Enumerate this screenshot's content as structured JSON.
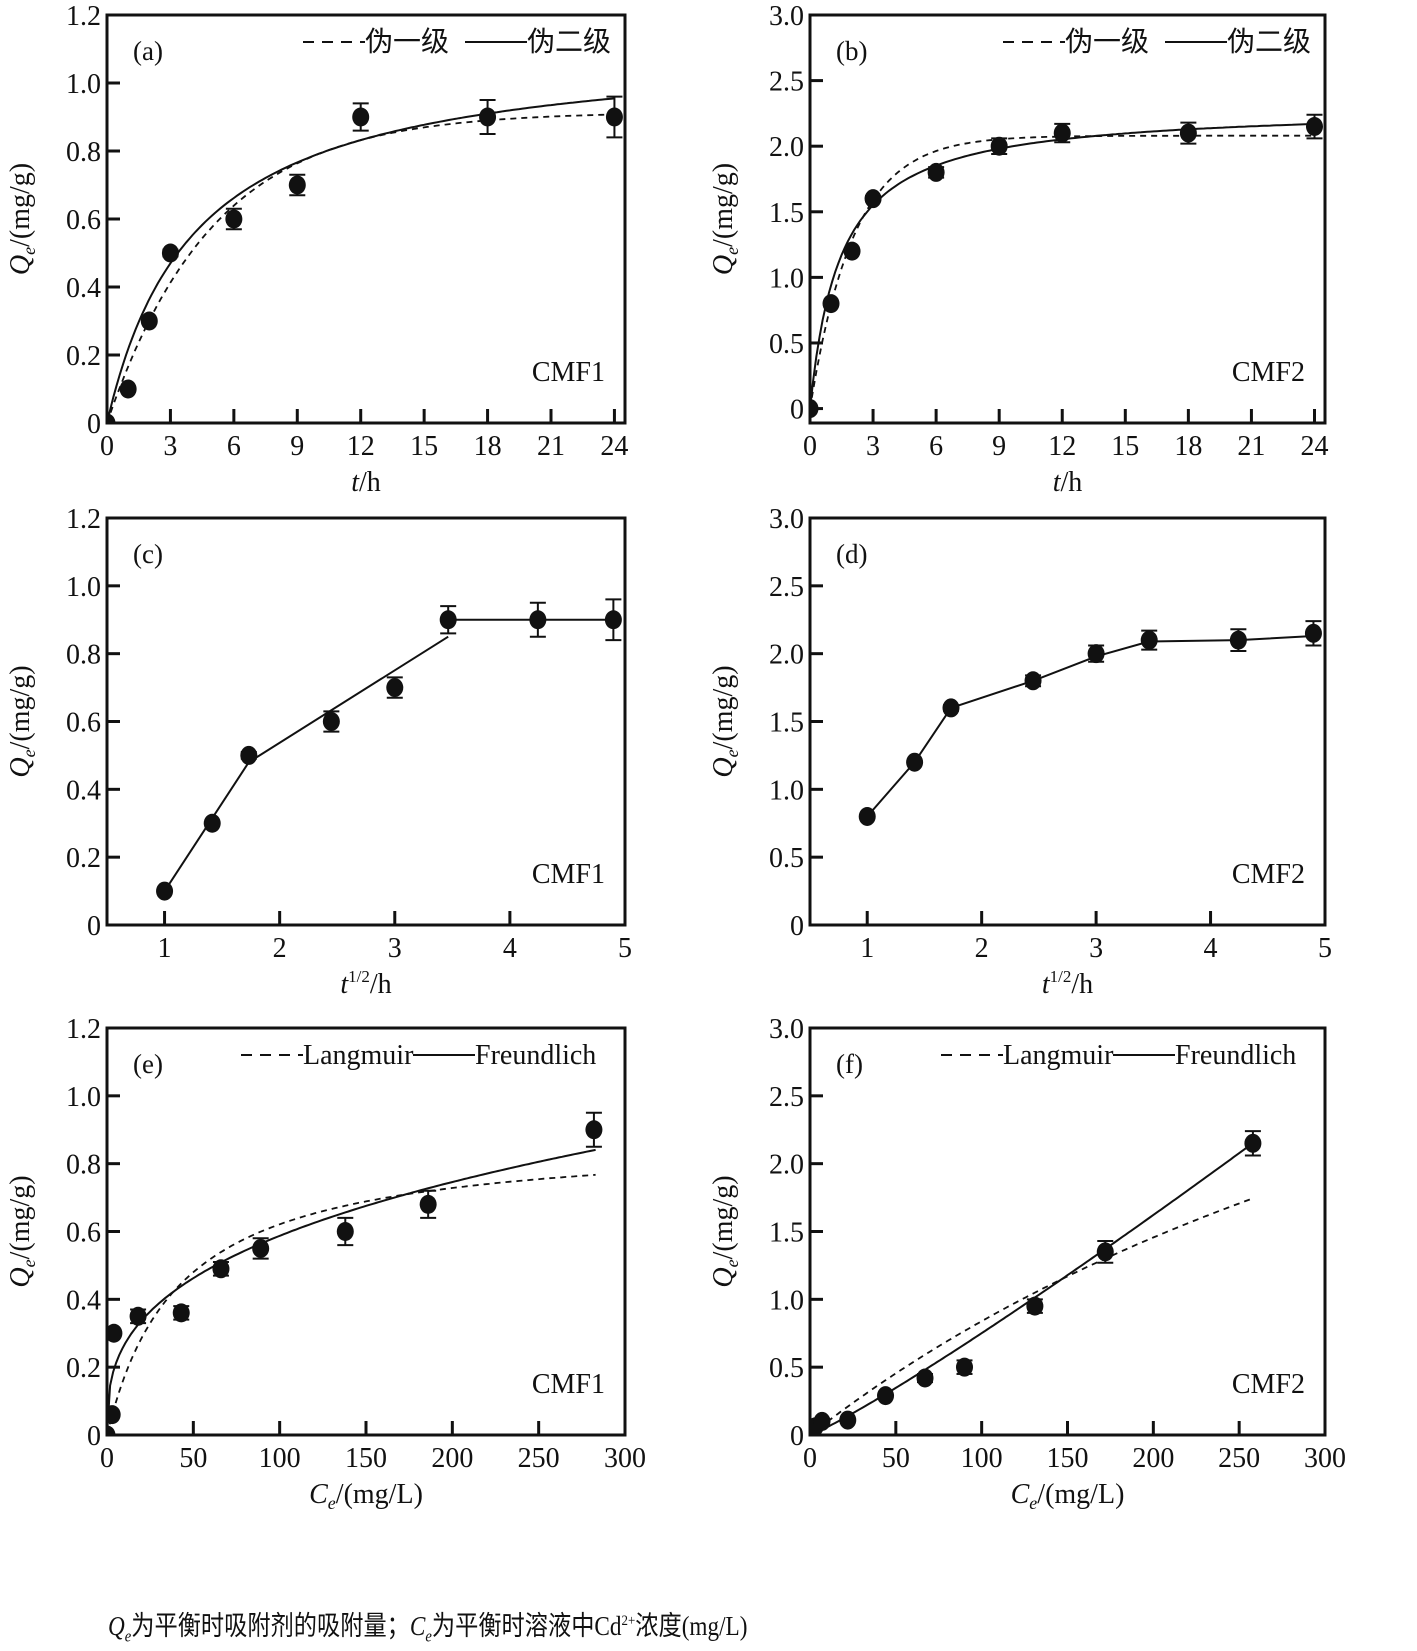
{
  "caption": {
    "q_symbol": "Q",
    "q_sub": "e",
    "part1": "为平衡时吸附剂的吸附量；",
    "c_symbol": "C",
    "c_sub": "e",
    "part2": "为平衡时溶液中Cd",
    "superscript": "2+",
    "part3": "浓度(mg/L)"
  },
  "chart_data": [
    {
      "id": "a",
      "type": "scatter",
      "panel_label": "(a)",
      "sample_label": "CMF1",
      "xlabel_italic": "t",
      "xlabel_rest": "/h",
      "ylabel_italic": "Q",
      "ylabel_sub": "e",
      "ylabel_rest": "/(mg/g)",
      "xlim": [
        0,
        24.5
      ],
      "ylim": [
        0,
        1.2
      ],
      "xticks": [
        0,
        3,
        6,
        9,
        12,
        15,
        18,
        21,
        24
      ],
      "xtick_labels": [
        "0",
        "3",
        "6",
        "9",
        "12",
        "15",
        "18",
        "21",
        "24"
      ],
      "yticks": [
        0,
        0.2,
        0.4,
        0.6,
        0.8,
        1.0,
        1.2
      ],
      "ytick_labels": [
        "0",
        "0.2",
        "0.4",
        "0.6",
        "0.8",
        "1.0",
        "1.2"
      ],
      "legend": [
        {
          "label": "伪一级",
          "style": "dashed"
        },
        {
          "label": "伪二级",
          "style": "solid"
        }
      ],
      "legend_position": "top-right",
      "points": {
        "x": [
          0,
          1,
          2,
          3,
          6,
          9,
          12,
          18,
          24
        ],
        "y": [
          0,
          0.1,
          0.3,
          0.5,
          0.6,
          0.7,
          0.9,
          0.9,
          0.9
        ],
        "err": [
          0,
          0,
          0,
          0.01,
          0.03,
          0.03,
          0.04,
          0.05,
          0.06
        ]
      },
      "series": [
        {
          "name": "伪一级",
          "style": "dashed",
          "model": "pfo",
          "qe": 0.915,
          "k": 0.2
        },
        {
          "name": "伪二级",
          "style": "solid",
          "model": "pso",
          "qe": 1.12,
          "k": 0.215
        }
      ]
    },
    {
      "id": "b",
      "type": "scatter",
      "panel_label": "(b)",
      "sample_label": "CMF2",
      "xlabel_italic": "t",
      "xlabel_rest": "/h",
      "ylabel_italic": "Q",
      "ylabel_sub": "e",
      "ylabel_rest": "/(mg/g)",
      "xlim": [
        0,
        24.5
      ],
      "ylim": [
        -0.11,
        3.0
      ],
      "xticks": [
        0,
        3,
        6,
        9,
        12,
        15,
        18,
        21,
        24
      ],
      "xtick_labels": [
        "0",
        "3",
        "6",
        "9",
        "12",
        "15",
        "18",
        "21",
        "24"
      ],
      "yticks": [
        0,
        0.5,
        1.0,
        1.5,
        2.0,
        2.5,
        3.0
      ],
      "ytick_labels": [
        "0",
        "0.5",
        "1.0",
        "1.5",
        "2.0",
        "2.5",
        "3.0"
      ],
      "legend": [
        {
          "label": "伪一级",
          "style": "dashed"
        },
        {
          "label": "伪二级",
          "style": "solid"
        }
      ],
      "legend_position": "top-right",
      "points": {
        "x": [
          0,
          1,
          2,
          3,
          6,
          9,
          12,
          18,
          24
        ],
        "y": [
          0,
          0.8,
          1.2,
          1.6,
          1.8,
          2.0,
          2.1,
          2.1,
          2.15
        ],
        "err": [
          0,
          0,
          0,
          0.02,
          0.04,
          0.06,
          0.07,
          0.08,
          0.09
        ]
      },
      "series": [
        {
          "name": "伪一级",
          "style": "dashed",
          "model": "pfo",
          "qe": 2.08,
          "k": 0.48
        },
        {
          "name": "伪二级",
          "style": "solid",
          "model": "pso",
          "qe": 2.3,
          "k": 0.3
        }
      ]
    },
    {
      "id": "c",
      "type": "line",
      "panel_label": "(c)",
      "sample_label": "CMF1",
      "xlabel_italic": "t",
      "xlabel_sup": "1/2",
      "xlabel_rest": "/h",
      "ylabel_italic": "Q",
      "ylabel_sub": "e",
      "ylabel_rest": "/(mg/g)",
      "xlim": [
        0.5,
        5
      ],
      "ylim": [
        0,
        1.2
      ],
      "xticks": [
        1,
        2,
        3,
        4,
        5
      ],
      "xtick_labels": [
        "1",
        "2",
        "3",
        "4",
        "5"
      ],
      "yticks": [
        0,
        0.2,
        0.4,
        0.6,
        0.8,
        1.0,
        1.2
      ],
      "ytick_labels": [
        "0",
        "0.2",
        "0.4",
        "0.6",
        "0.8",
        "1.0",
        "1.2"
      ],
      "points": {
        "x": [
          1.0,
          1.414,
          1.732,
          2.449,
          3.0,
          3.464,
          4.243,
          4.899
        ],
        "y": [
          0.1,
          0.3,
          0.5,
          0.6,
          0.7,
          0.9,
          0.9,
          0.9
        ],
        "err": [
          0,
          0,
          0.01,
          0.03,
          0.03,
          0.04,
          0.05,
          0.06
        ]
      },
      "series": [
        {
          "name": "stage1",
          "style": "solid",
          "x": [
            1.0,
            1.732
          ],
          "y": [
            0.1,
            0.48
          ]
        },
        {
          "name": "stage2",
          "style": "solid",
          "x": [
            1.732,
            3.464
          ],
          "y": [
            0.48,
            0.85
          ]
        },
        {
          "name": "stage3",
          "style": "solid",
          "x": [
            3.464,
            4.899
          ],
          "y": [
            0.9,
            0.9
          ]
        }
      ]
    },
    {
      "id": "d",
      "type": "line",
      "panel_label": "(d)",
      "sample_label": "CMF2",
      "xlabel_italic": "t",
      "xlabel_sup": "1/2",
      "xlabel_rest": "/h",
      "ylabel_italic": "Q",
      "ylabel_sub": "e",
      "ylabel_rest": "/(mg/g)",
      "xlim": [
        0.5,
        5
      ],
      "ylim": [
        0,
        3.0
      ],
      "xticks": [
        1,
        2,
        3,
        4,
        5
      ],
      "xtick_labels": [
        "1",
        "2",
        "3",
        "4",
        "5"
      ],
      "yticks": [
        0,
        0.5,
        1.0,
        1.5,
        2.0,
        2.5,
        3.0
      ],
      "ytick_labels": [
        "0",
        "0.5",
        "1.0",
        "1.5",
        "2.0",
        "2.5",
        "3.0"
      ],
      "points": {
        "x": [
          1.0,
          1.414,
          1.732,
          2.449,
          3.0,
          3.464,
          4.243,
          4.899
        ],
        "y": [
          0.8,
          1.2,
          1.6,
          1.8,
          2.0,
          2.1,
          2.1,
          2.15
        ],
        "err": [
          0,
          0,
          0.02,
          0.04,
          0.06,
          0.07,
          0.08,
          0.09
        ]
      },
      "series": [
        {
          "name": "stage1",
          "style": "solid",
          "x": [
            1.0,
            1.414,
            1.732
          ],
          "y": [
            0.8,
            1.2,
            1.6
          ]
        },
        {
          "name": "stage2",
          "style": "solid",
          "x": [
            1.732,
            2.449,
            3.0,
            3.464
          ],
          "y": [
            1.6,
            1.8,
            1.98,
            2.09
          ]
        },
        {
          "name": "stage3",
          "style": "solid",
          "x": [
            3.464,
            4.243,
            4.899
          ],
          "y": [
            2.09,
            2.1,
            2.13
          ]
        }
      ]
    },
    {
      "id": "e",
      "type": "scatter",
      "panel_label": "(e)",
      "sample_label": "CMF1",
      "xlabel_italic": "C",
      "xlabel_sub": "e",
      "xlabel_rest": "/(mg/L)",
      "ylabel_italic": "Q",
      "ylabel_sub": "e",
      "ylabel_rest": "/(mg/g)",
      "xlim": [
        0,
        300
      ],
      "ylim": [
        0,
        1.2
      ],
      "xticks": [
        0,
        50,
        100,
        150,
        200,
        250,
        300
      ],
      "xtick_labels": [
        "0",
        "50",
        "100",
        "150",
        "200",
        "250",
        "300"
      ],
      "yticks": [
        0,
        0.2,
        0.4,
        0.6,
        0.8,
        1.0,
        1.2
      ],
      "ytick_labels": [
        "0",
        "0.2",
        "0.4",
        "0.6",
        "0.8",
        "1.0",
        "1.2"
      ],
      "legend": [
        {
          "label": "Langmuir",
          "style": "dashed"
        },
        {
          "label": "Freundlich",
          "style": "solid"
        }
      ],
      "legend_position": "top-right",
      "points": {
        "x": [
          0,
          3,
          4,
          18,
          43,
          66,
          89,
          138,
          186,
          282
        ],
        "y": [
          0,
          0.06,
          0.3,
          0.35,
          0.36,
          0.49,
          0.55,
          0.6,
          0.68,
          0.9
        ],
        "err": [
          0,
          0,
          0,
          0.02,
          0.02,
          0.02,
          0.03,
          0.04,
          0.04,
          0.05
        ]
      },
      "series": [
        {
          "name": "Langmuir",
          "style": "dashed",
          "model": "langmuir",
          "qmax": 0.88,
          "kl": 0.024,
          "xmax": 283
        },
        {
          "name": "Freundlich",
          "style": "solid",
          "model": "freundlich",
          "kf": 0.12,
          "n": 2.9,
          "xmax": 283
        }
      ]
    },
    {
      "id": "f",
      "type": "scatter",
      "panel_label": "(f)",
      "sample_label": "CMF2",
      "xlabel_italic": "C",
      "xlabel_sub": "e",
      "xlabel_rest": "/(mg/L)",
      "ylabel_italic": "Q",
      "ylabel_sub": "e",
      "ylabel_rest": "/(mg/g)",
      "xlim": [
        0,
        300
      ],
      "ylim": [
        0,
        3.0
      ],
      "xticks": [
        0,
        50,
        100,
        150,
        200,
        250,
        300
      ],
      "xtick_labels": [
        "0",
        "50",
        "100",
        "150",
        "200",
        "250",
        "300"
      ],
      "yticks": [
        0,
        0.5,
        1.0,
        1.5,
        2.0,
        2.5,
        3.0
      ],
      "ytick_labels": [
        "0",
        "0.5",
        "1.0",
        "1.5",
        "2.0",
        "2.5",
        "3.0"
      ],
      "legend": [
        {
          "label": "Langmuir",
          "style": "dashed"
        },
        {
          "label": "Freundlich",
          "style": "solid"
        }
      ],
      "legend_position": "top-right",
      "points": {
        "x": [
          0,
          3,
          7,
          22,
          44,
          67,
          90,
          131,
          172,
          258
        ],
        "y": [
          0,
          0.06,
          0.1,
          0.11,
          0.29,
          0.42,
          0.5,
          0.95,
          1.35,
          2.15
        ],
        "err": [
          0,
          0,
          0,
          0,
          0,
          0.03,
          0.05,
          0.05,
          0.08,
          0.09
        ]
      },
      "series": [
        {
          "name": "Langmuir",
          "style": "dashed",
          "model": "langmuir",
          "qmax": 5.5,
          "kl": 0.0018,
          "xmax": 258
        },
        {
          "name": "Freundlich",
          "style": "solid",
          "model": "freundlich",
          "kf": 0.0045,
          "n": 0.9,
          "xmax": 258
        }
      ]
    }
  ]
}
